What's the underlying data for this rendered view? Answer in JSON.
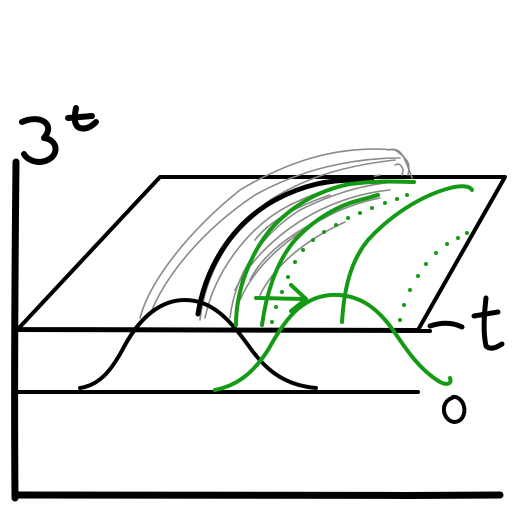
{
  "labels": {
    "vertical_axis": "3t",
    "depth_axis": "t",
    "origin": "0"
  },
  "colors": {
    "black_ink": "#000000",
    "green_ink": "#149a14",
    "gray_ink": "#8a8a8a"
  }
}
